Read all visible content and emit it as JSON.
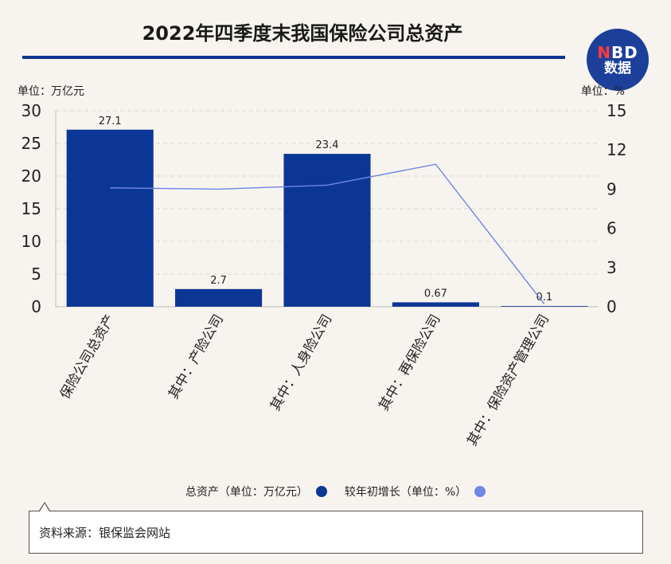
{
  "title": "2022年四季度末我国保险公司总资产",
  "logo": {
    "line1_n": "N",
    "line1_rest": "BD",
    "line2": "数据"
  },
  "unit_left": "单位：万亿元",
  "unit_right": "单位：%",
  "legend": {
    "bar_label": "总资产（单位：万亿元）",
    "line_label": "较年初增长（单位：%）"
  },
  "source": "资料来源：银保监会网站",
  "colors": {
    "bar": "#0c3696",
    "line": "#6f86e6",
    "accent": "#0b3590"
  },
  "chart_data": {
    "type": "bar",
    "categories": [
      "保险公司总资产",
      "其中：产险公司",
      "其中：人身险公司",
      "其中：再保险公司",
      "其中：保险资产管理公司"
    ],
    "series": [
      {
        "name": "总资产（单位：万亿元）",
        "type": "bar",
        "axis": "left",
        "values": [
          27.1,
          2.7,
          23.4,
          0.67,
          0.1
        ]
      },
      {
        "name": "较年初增长（单位：%）",
        "type": "line",
        "axis": "right",
        "values": [
          9.1,
          9.0,
          9.3,
          10.9,
          0.2
        ]
      }
    ],
    "data_labels": [
      "27.1",
      "2.7",
      "23.4",
      "0.67",
      "0.1"
    ],
    "ylim_left": [
      0,
      30
    ],
    "yticks_left": [
      0,
      5,
      10,
      15,
      20,
      25,
      30
    ],
    "ylim_right": [
      0,
      15
    ],
    "yticks_right": [
      0,
      3,
      6,
      9,
      12,
      15
    ],
    "grid": true
  }
}
